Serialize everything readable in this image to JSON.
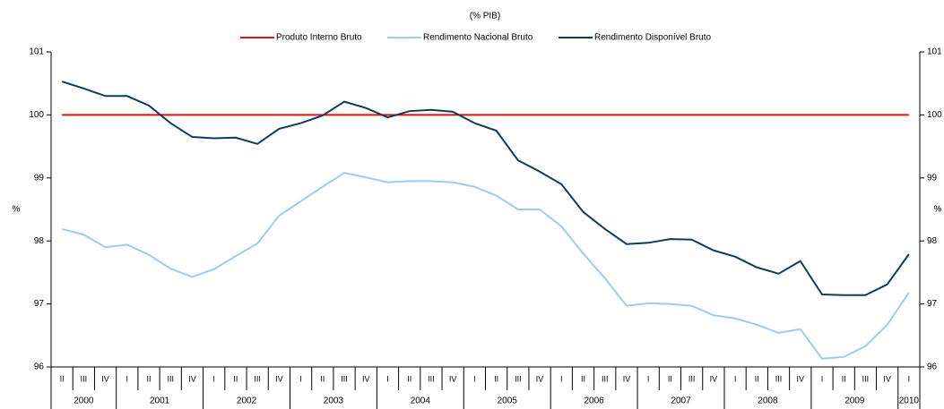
{
  "chart_data": {
    "type": "line",
    "title": "(% PIB)",
    "ylabel": "%",
    "y2label": "%",
    "categories": [
      "II",
      "III",
      "IV",
      "I",
      "II",
      "III",
      "IV",
      "I",
      "II",
      "III",
      "IV",
      "I",
      "II",
      "III",
      "IV",
      "I",
      "II",
      "III",
      "IV",
      "I",
      "II",
      "III",
      "IV",
      "I",
      "II",
      "III",
      "IV",
      "I",
      "II",
      "III",
      "IV",
      "I",
      "II",
      "III",
      "IV",
      "I",
      "II",
      "III",
      "IV",
      "I"
    ],
    "years": [
      "2000",
      "2001",
      "2002",
      "2003",
      "2004",
      "2005",
      "2006",
      "2007",
      "2008",
      "2009",
      "2010"
    ],
    "series": [
      {
        "name": "Produto Interno Bruto",
        "color": "#e3120b",
        "values": [
          100,
          100,
          100,
          100,
          100,
          100,
          100,
          100,
          100,
          100,
          100,
          100,
          100,
          100,
          100,
          100,
          100,
          100,
          100,
          100,
          100,
          100,
          100,
          100,
          100,
          100,
          100,
          100,
          100,
          100,
          100,
          100,
          100,
          100,
          100,
          100,
          100,
          100,
          100,
          100
        ]
      },
      {
        "name": "Rendimento Nacional Bruto",
        "color": "#9ecbf0",
        "values": [
          98.19,
          98.1,
          97.9,
          97.94,
          97.78,
          97.56,
          97.43,
          97.55,
          97.76,
          97.96,
          98.4,
          98.63,
          98.86,
          99.08,
          99.01,
          98.93,
          98.95,
          98.95,
          98.93,
          98.86,
          98.72,
          98.5,
          98.5,
          98.23,
          97.8,
          97.41,
          96.97,
          97.01,
          97.0,
          96.97,
          96.82,
          96.77,
          96.67,
          96.54,
          96.6,
          96.13,
          96.16,
          96.33,
          96.67,
          97.18
        ]
      },
      {
        "name": "Rendimento Disponível Bruto",
        "color": "#0f3d57",
        "values": [
          100.53,
          100.42,
          100.3,
          100.3,
          100.15,
          99.87,
          99.65,
          99.63,
          99.64,
          99.54,
          99.78,
          99.87,
          99.99,
          100.21,
          100.11,
          99.96,
          100.06,
          100.08,
          100.05,
          99.87,
          99.75,
          99.28,
          99.1,
          98.9,
          98.46,
          98.19,
          97.95,
          97.97,
          98.03,
          98.02,
          97.85,
          97.75,
          97.58,
          97.48,
          97.68,
          97.15,
          97.14,
          97.14,
          97.31,
          97.79
        ]
      }
    ],
    "ylim": [
      96,
      101
    ],
    "yticks": [
      96,
      97,
      98,
      99,
      100,
      101
    ],
    "y2lim": [
      96,
      101
    ],
    "y2ticks": [
      96,
      97,
      98,
      99,
      100,
      101
    ]
  }
}
